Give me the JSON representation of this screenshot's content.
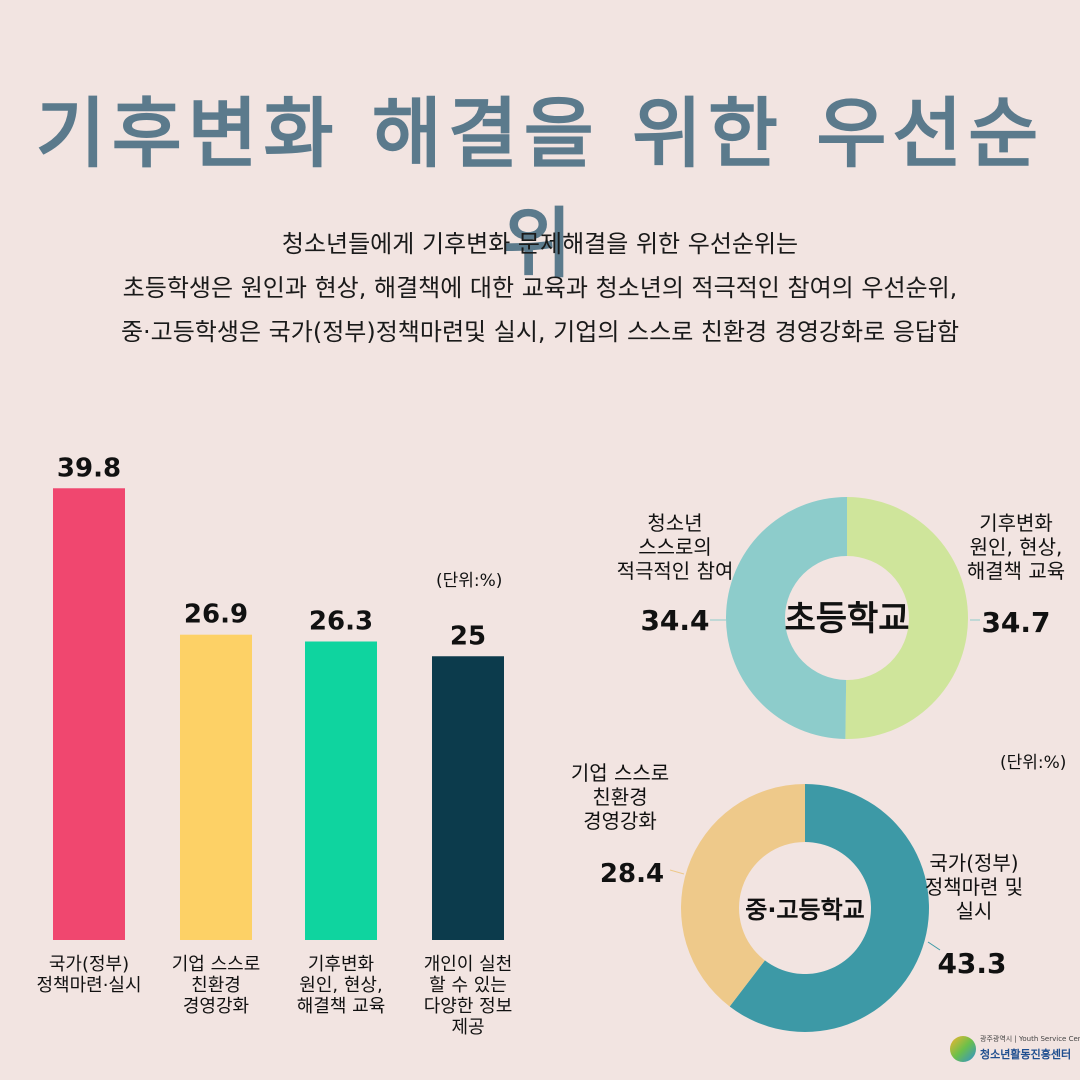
{
  "title": "기후변화 해결을 위한 우선순위",
  "description": [
    "청소년들에게 기후변화 문제해결을 위한 우선순위는",
    "초등학생은 원인과 현상, 해결책에 대한 교육과 청소년의 적극적인 참여의 우선순위,",
    "중·고등학생은 국가(정부)정책마련및 실시, 기업의 스스로 친환경 경영강화로 응답함"
  ],
  "chart_data": [
    {
      "type": "bar",
      "unit_label": "(단위:%)",
      "categories": [
        "국가(정부)\n정책마련·실시",
        "기업 스스로\n친환경\n경영강화",
        "기후변화\n원인, 현상,\n해결책 교육",
        "개인이 실천\n할 수 있는\n다양한 정보\n제공"
      ],
      "values": [
        39.8,
        26.9,
        26.3,
        25
      ],
      "value_labels": [
        "39.8",
        "26.9",
        "26.3",
        "25"
      ],
      "colors": [
        "#f0476f",
        "#fdd166",
        "#0fd49f",
        "#0c3b4c"
      ]
    },
    {
      "type": "pie",
      "center_label": "초등학교",
      "labels": [
        "기후변화\n원인, 현상,\n해결책 교육",
        "청소년\n스스로의\n적극적인 참여"
      ],
      "values": [
        34.7,
        34.4
      ],
      "value_labels": [
        "34.7",
        "34.4"
      ],
      "colors": [
        "#cfe59b",
        "#8dcccb"
      ]
    },
    {
      "type": "pie",
      "center_label": "중·고등학교",
      "unit_label": "(단위:%)",
      "labels": [
        "국가(정부)\n정책마련 및\n실시",
        "기업 스스로\n친환경\n경영강화"
      ],
      "values": [
        43.3,
        28.4
      ],
      "value_labels": [
        "43.3",
        "28.4"
      ],
      "colors": [
        "#3d99a6",
        "#eec98a"
      ]
    }
  ],
  "logo": {
    "small_text": "광주광역시 | Youth Service Center",
    "name": "청소년활동진흥센터"
  }
}
